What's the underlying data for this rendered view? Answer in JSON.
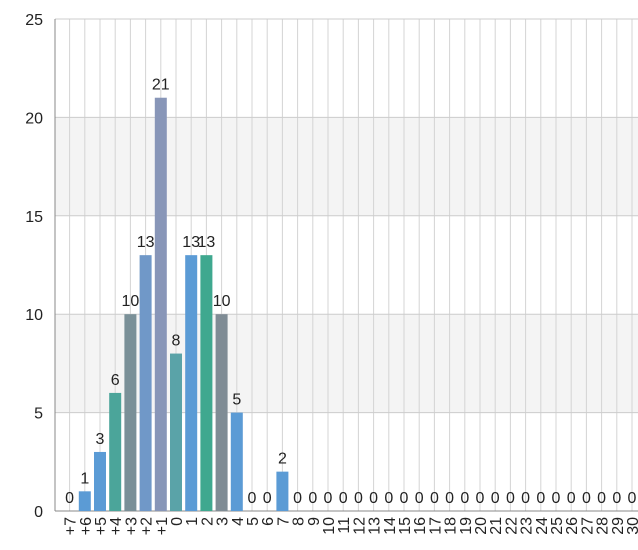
{
  "chart_data": {
    "type": "bar",
    "categories": [
      "+7",
      "+6",
      "+5",
      "+4",
      "+3",
      "+2",
      "+1",
      "0",
      "1",
      "2",
      "3",
      "4",
      "5",
      "6",
      "7",
      "8",
      "9",
      "10",
      "11",
      "12",
      "13",
      "14",
      "15",
      "16",
      "17",
      "18",
      "19",
      "20",
      "21",
      "22",
      "23",
      "24",
      "25",
      "26",
      "27",
      "28",
      "29",
      "30"
    ],
    "values": [
      0,
      1,
      3,
      6,
      10,
      13,
      21,
      8,
      13,
      13,
      10,
      5,
      0,
      0,
      2,
      0,
      0,
      0,
      0,
      0,
      0,
      0,
      0,
      0,
      0,
      0,
      0,
      0,
      0,
      0,
      0,
      0,
      0,
      0,
      0,
      0,
      0,
      0
    ],
    "colors": [
      "#5b9bd5",
      "#5b9bd5",
      "#5b9bd5",
      "#4ba59a",
      "#7a9098",
      "#7098c8",
      "#8896b8",
      "#5aa3a8",
      "#5b9bd5",
      "#3fa88f",
      "#7f8c95",
      "#5b9bd5",
      "#5b9bd5",
      "#5b9bd5",
      "#5b9bd5",
      "#5b9bd5",
      "#5b9bd5",
      "#5b9bd5",
      "#5b9bd5",
      "#5b9bd5",
      "#5b9bd5",
      "#5b9bd5",
      "#5b9bd5",
      "#5b9bd5",
      "#5b9bd5",
      "#5b9bd5",
      "#5b9bd5",
      "#5b9bd5",
      "#5b9bd5",
      "#5b9bd5",
      "#5b9bd5",
      "#5b9bd5",
      "#5b9bd5",
      "#5b9bd5",
      "#5b9bd5",
      "#5b9bd5",
      "#5b9bd5",
      "#5b9bd5"
    ],
    "ylim": [
      0,
      25
    ],
    "yticks": [
      0,
      5,
      10,
      15,
      20,
      25
    ],
    "grid": true
  }
}
